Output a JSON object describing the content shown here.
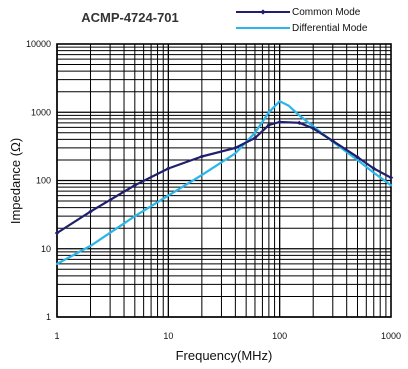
{
  "chart_data": {
    "type": "line",
    "title": "ACMP-4724-701",
    "xlabel": "Frequency(MHz)",
    "ylabel": "Impedance (Ω)",
    "x_scale": "log",
    "y_scale": "log",
    "xlim": [
      1,
      1000
    ],
    "ylim": [
      1,
      10000
    ],
    "x_ticks": [
      {
        "value": 1,
        "label": "1"
      },
      {
        "value": 10,
        "label": "10"
      },
      {
        "value": 100,
        "label": "100"
      },
      {
        "value": 1000,
        "label": "1000"
      }
    ],
    "y_ticks": [
      {
        "value": 1,
        "label": "1"
      },
      {
        "value": 10,
        "label": "10"
      },
      {
        "value": 100,
        "label": "100"
      },
      {
        "value": 1000,
        "label": "1000"
      },
      {
        "value": 10000,
        "label": "10000"
      }
    ],
    "grid": true,
    "legend_position": "top-right",
    "series": [
      {
        "name": "Common Mode",
        "color": "#1f1f6e",
        "marker": "diamond",
        "x": [
          1,
          2,
          5,
          10,
          20,
          40,
          60,
          80,
          100,
          150,
          200,
          300,
          500,
          700,
          1000
        ],
        "y": [
          17,
          35,
          85,
          150,
          225,
          300,
          420,
          650,
          720,
          700,
          580,
          380,
          220,
          150,
          110
        ]
      },
      {
        "name": "Differential Mode",
        "color": "#29b6e8",
        "x": [
          1,
          2,
          5,
          10,
          20,
          40,
          60,
          80,
          100,
          120,
          150,
          200,
          300,
          500,
          700,
          1000
        ],
        "y": [
          6,
          11,
          30,
          60,
          120,
          250,
          500,
          1000,
          1450,
          1250,
          900,
          620,
          370,
          200,
          130,
          85
        ]
      }
    ]
  }
}
